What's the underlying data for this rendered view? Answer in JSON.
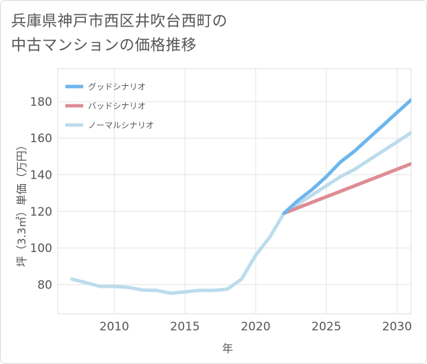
{
  "title_lines": [
    "兵庫県神戸市西区井吹台西町の",
    "中古マンションの価格推移"
  ],
  "chart_data": {
    "type": "line",
    "title": "兵庫県神戸市西区井吹台西町の中古マンションの価格推移",
    "xlabel": "年",
    "ylabel": "坪（3.3㎡）単価（万円）",
    "xlim": [
      2006,
      2031
    ],
    "ylim": [
      64,
      198
    ],
    "x_ticks": [
      2010,
      2015,
      2020,
      2025,
      2030
    ],
    "y_ticks": [
      80,
      100,
      120,
      140,
      160,
      180
    ],
    "grid": true,
    "legend_position": "top-left",
    "series": [
      {
        "name": "グッドシナリオ",
        "color": "#6cb6ec",
        "x": [
          2022,
          2023,
          2024,
          2025,
          2026,
          2027,
          2028,
          2029,
          2030,
          2031
        ],
        "values": [
          119,
          126,
          132,
          139,
          147,
          153,
          160,
          167,
          174,
          181
        ]
      },
      {
        "name": "バッドシナリオ",
        "color": "#de8c94",
        "x": [
          2022,
          2023,
          2024,
          2025,
          2026,
          2027,
          2028,
          2029,
          2030,
          2031
        ],
        "values": [
          119,
          122,
          125,
          128,
          131,
          134,
          137,
          140,
          143,
          146
        ]
      },
      {
        "name": "ノーマルシナリオ",
        "color": "#bcdcec",
        "x": [
          2007,
          2008,
          2009,
          2010,
          2011,
          2012,
          2013,
          2014,
          2015,
          2016,
          2017,
          2018,
          2019,
          2020,
          2021,
          2022,
          2023,
          2024,
          2025,
          2026,
          2027,
          2028,
          2029,
          2030,
          2031
        ],
        "values": [
          83,
          81,
          79,
          79,
          78.5,
          77,
          76.8,
          75.3,
          76,
          76.8,
          76.8,
          77.5,
          83,
          96,
          106,
          119,
          124,
          129,
          134,
          139,
          143,
          148,
          153,
          158,
          163
        ]
      }
    ]
  }
}
